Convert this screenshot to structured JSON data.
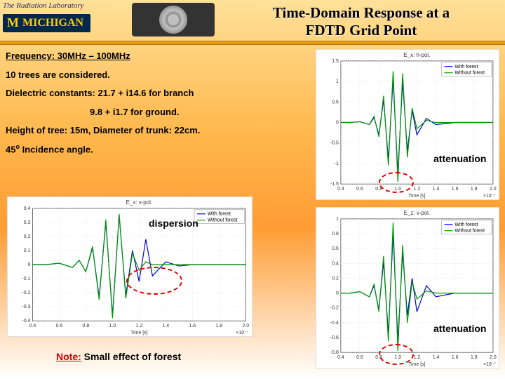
{
  "header": {
    "lab": "The Radiation Laboratory",
    "university": "MICHIGAN",
    "title_line1": "Time-Domain Response at a",
    "title_line2": "FDTD Grid Point"
  },
  "params": {
    "freq_label": "Frequency: 30MHz – 100MHz",
    "trees": "10 trees are considered.",
    "dielectric_branch": "Dielectric constants: 21.7 + i14.6 for branch",
    "dielectric_ground": "9.8 + i1.7 for ground.",
    "geometry": "Height of tree: 15m, Diameter of trunk: 22cm.",
    "incidence": "45° Incidence angle."
  },
  "callouts": {
    "dispersion": "dispersion",
    "attenuation": "attenuation"
  },
  "note": {
    "prefix": "Note:",
    "text": " Small effect of forest"
  },
  "legend_items": [
    "With forest",
    "Without forest"
  ],
  "charts": {
    "ex_vpol": {
      "title": "E_x: v-pol.",
      "xlim": [
        0.4,
        2.0
      ],
      "xtick_step": 0.2,
      "ylim": [
        -0.4,
        0.4
      ],
      "ytick_step": 0.1,
      "xlabel": "Time [s]",
      "x_exp": "×10⁻⁷",
      "line_colors": [
        "#0000cc",
        "#009900"
      ],
      "background": "#ffffff",
      "grid_color": "#cccccc",
      "series": [
        {
          "name": "With forest",
          "color": "#0000cc",
          "x": [
            0.4,
            0.5,
            0.6,
            0.7,
            0.75,
            0.8,
            0.85,
            0.9,
            0.95,
            1.0,
            1.05,
            1.1,
            1.15,
            1.2,
            1.25,
            1.3,
            1.4,
            1.5,
            1.6,
            1.8,
            2.0
          ],
          "y": [
            0,
            0,
            0.01,
            -0.02,
            0.03,
            -0.05,
            0.12,
            -0.23,
            0.3,
            -0.36,
            0.35,
            -0.22,
            0.1,
            -0.12,
            0.18,
            -0.08,
            0.02,
            -0.01,
            0,
            0,
            0
          ]
        },
        {
          "name": "Without forest",
          "color": "#009900",
          "x": [
            0.4,
            0.5,
            0.6,
            0.7,
            0.75,
            0.8,
            0.85,
            0.9,
            0.95,
            1.0,
            1.05,
            1.1,
            1.15,
            1.2,
            1.25,
            1.3,
            1.4,
            1.5,
            1.6,
            1.8,
            2.0
          ],
          "y": [
            0,
            0,
            0.01,
            -0.02,
            0.03,
            -0.05,
            0.13,
            -0.25,
            0.32,
            -0.38,
            0.36,
            -0.24,
            0.08,
            -0.04,
            0.02,
            0,
            0,
            0,
            0,
            0,
            0
          ]
        }
      ]
    },
    "ex_hpol": {
      "title": "E_x: h-pol.",
      "xlim": [
        0.4,
        2.0
      ],
      "xtick_step": 0.2,
      "ylim": [
        -1.5,
        1.5
      ],
      "ytick_step": 0.5,
      "xlabel": "Time [s]",
      "x_exp": "×10⁻⁷",
      "line_colors": [
        "#0000cc",
        "#009900"
      ],
      "background": "#ffffff",
      "grid_color": "#cccccc",
      "series": [
        {
          "name": "With forest",
          "color": "#0000cc",
          "x": [
            0.4,
            0.5,
            0.6,
            0.7,
            0.75,
            0.8,
            0.85,
            0.9,
            0.95,
            1.0,
            1.05,
            1.1,
            1.15,
            1.2,
            1.3,
            1.4,
            1.6,
            1.8,
            2.0
          ],
          "y": [
            0,
            0,
            0.02,
            -0.05,
            0.12,
            -0.3,
            0.55,
            -0.9,
            1.05,
            -1.25,
            1.0,
            -0.7,
            0.3,
            -0.3,
            0.1,
            -0.05,
            0,
            0,
            0
          ]
        },
        {
          "name": "Without forest",
          "color": "#009900",
          "x": [
            0.4,
            0.5,
            0.6,
            0.7,
            0.75,
            0.8,
            0.85,
            0.9,
            0.95,
            1.0,
            1.05,
            1.1,
            1.15,
            1.2,
            1.3,
            1.4,
            1.6,
            1.8,
            2.0
          ],
          "y": [
            0,
            0,
            0.02,
            -0.05,
            0.15,
            -0.35,
            0.65,
            -1.05,
            1.25,
            -1.45,
            1.2,
            -0.85,
            0.35,
            -0.15,
            0.05,
            0,
            0,
            0,
            0
          ]
        }
      ]
    },
    "ez_vpol": {
      "title": "E_z: v-pol.",
      "xlim": [
        0.4,
        2.0
      ],
      "xtick_step": 0.2,
      "ylim": [
        -0.8,
        1.0
      ],
      "ytick_step": 0.2,
      "xlabel": "Time [s]",
      "x_exp": "×10⁻⁷",
      "line_colors": [
        "#0000cc",
        "#009900"
      ],
      "background": "#ffffff",
      "grid_color": "#cccccc",
      "series": [
        {
          "name": "With forest",
          "color": "#0000cc",
          "x": [
            0.4,
            0.5,
            0.6,
            0.7,
            0.75,
            0.8,
            0.85,
            0.9,
            0.95,
            1.0,
            1.05,
            1.1,
            1.15,
            1.2,
            1.3,
            1.4,
            1.6,
            1.8,
            2.0
          ],
          "y": [
            0,
            0,
            0.02,
            -0.05,
            0.1,
            -0.22,
            0.42,
            -0.55,
            0.8,
            -0.65,
            0.55,
            -0.3,
            0.2,
            -0.25,
            0.1,
            -0.05,
            0,
            0,
            0
          ]
        },
        {
          "name": "Without forest",
          "color": "#009900",
          "x": [
            0.4,
            0.5,
            0.6,
            0.7,
            0.75,
            0.8,
            0.85,
            0.9,
            0.95,
            1.0,
            1.05,
            1.1,
            1.15,
            1.2,
            1.3,
            1.4,
            1.6,
            1.8,
            2.0
          ],
          "y": [
            0,
            0,
            0.02,
            -0.05,
            0.12,
            -0.25,
            0.5,
            -0.65,
            0.95,
            -0.78,
            0.65,
            -0.4,
            0.15,
            -0.08,
            0.03,
            0,
            0,
            0,
            0
          ]
        }
      ]
    }
  }
}
